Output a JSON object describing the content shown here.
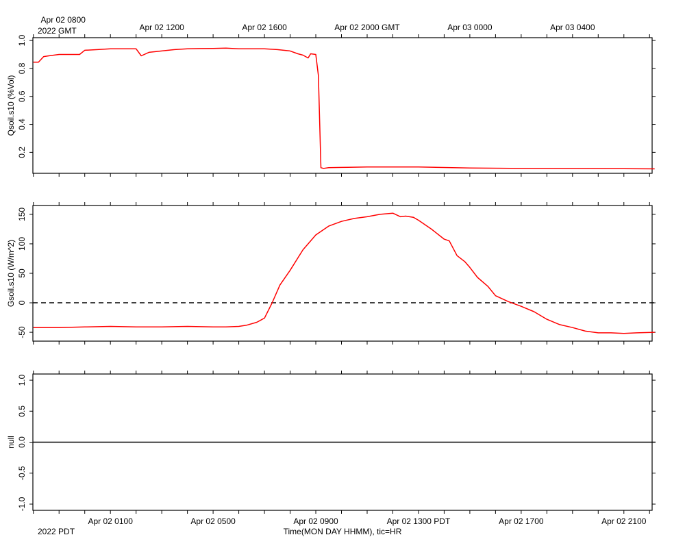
{
  "chart_data": [
    {
      "type": "line",
      "ylabel": "Qsoil.s10 (%Vol)",
      "ylim": [
        0.05,
        1.02
      ],
      "yticks": [
        0.2,
        0.4,
        0.6,
        0.8,
        1.0
      ],
      "ytick_labels": [
        "0.2",
        "0.4",
        "0.6",
        "0.8",
        "1.0"
      ],
      "top_axis_labels": [
        {
          "hour": 0,
          "text": "Apr 02 0800"
        },
        {
          "hour": 4,
          "text": "Apr 02 1200"
        },
        {
          "hour": 8,
          "text": "Apr 02 1600"
        },
        {
          "hour": 12,
          "text": "Apr 02 2000 GMT"
        },
        {
          "hour": 16,
          "text": "Apr 03 0000"
        },
        {
          "hour": 20,
          "text": "Apr 03 0400"
        }
      ],
      "top_axis_year": "2022 GMT",
      "reference_line": null,
      "series": [
        {
          "color": "#ff0000",
          "x": [
            -1,
            -0.8,
            -0.6,
            -0.4,
            -0.2,
            0,
            0.3,
            0.8,
            1,
            1.5,
            2,
            2.5,
            2.8,
            3,
            3.2,
            3.5,
            4,
            4.5,
            5,
            5.5,
            6,
            6.5,
            6.8,
            7,
            7.5,
            8,
            8.5,
            9,
            9.3,
            9.5,
            9.7,
            9.8,
            10,
            10.1,
            10.2,
            10.3,
            10.5,
            11,
            12,
            14,
            16,
            18,
            20,
            22,
            23.2
          ],
          "y": [
            0.845,
            0.845,
            0.885,
            0.89,
            0.895,
            0.9,
            0.9,
            0.9,
            0.93,
            0.935,
            0.94,
            0.94,
            0.94,
            0.94,
            0.89,
            0.915,
            0.925,
            0.935,
            0.94,
            0.942,
            0.943,
            0.945,
            0.942,
            0.94,
            0.94,
            0.94,
            0.935,
            0.925,
            0.905,
            0.895,
            0.875,
            0.905,
            0.9,
            0.75,
            0.09,
            0.085,
            0.09,
            0.092,
            0.095,
            0.095,
            0.088,
            0.085,
            0.084,
            0.083,
            0.082
          ]
        }
      ]
    },
    {
      "type": "line",
      "ylabel": "Gsoil.s10 (W/m^2)",
      "ylim": [
        -65,
        165
      ],
      "yticks": [
        -50,
        0,
        50,
        100,
        150
      ],
      "ytick_labels": [
        "-50",
        "0",
        "50",
        "100",
        "150"
      ],
      "reference_line": {
        "y": 0,
        "style": "dashed"
      },
      "series": [
        {
          "color": "#ff0000",
          "x": [
            -1,
            0,
            1,
            2,
            3,
            4,
            5,
            6,
            6.5,
            7,
            7.3,
            7.7,
            8,
            8.3,
            8.6,
            9,
            9.5,
            10,
            10.5,
            11,
            11.5,
            12,
            12.5,
            13,
            13.3,
            13.5,
            13.8,
            14,
            14.5,
            15,
            15.2,
            15.5,
            15.8,
            16,
            16.3,
            16.7,
            17,
            17.5,
            18,
            18.5,
            19,
            19.5,
            20,
            20.5,
            21,
            21.5,
            22,
            22.5,
            23.2
          ],
          "y": [
            -42,
            -42,
            -41,
            -40,
            -41,
            -41,
            -40,
            -41,
            -41,
            -40,
            -38,
            -33,
            -26,
            0,
            30,
            55,
            90,
            115,
            130,
            138,
            143,
            146,
            150,
            152,
            146,
            147,
            145,
            140,
            125,
            108,
            105,
            80,
            70,
            60,
            43,
            28,
            12,
            2,
            -6,
            -15,
            -28,
            -37,
            -42,
            -48,
            -51,
            -51,
            -52,
            -51,
            -50
          ]
        }
      ]
    },
    {
      "type": "line",
      "ylabel": "null",
      "ylim": [
        -1.1,
        1.1
      ],
      "yticks": [
        -1.0,
        -0.5,
        0.0,
        0.5,
        1.0
      ],
      "ytick_labels": [
        "-1.0",
        "-0.5",
        "0.0",
        "0.5",
        "1.0"
      ],
      "reference_line": {
        "y": 0,
        "style": "solid"
      },
      "series": [],
      "bottom_axis_labels": [
        {
          "hour": 2,
          "text": "Apr 02 0100"
        },
        {
          "hour": 6,
          "text": "Apr 02 0500"
        },
        {
          "hour": 10,
          "text": "Apr 02 0900"
        },
        {
          "hour": 14,
          "text": "Apr 02 1300 PDT"
        },
        {
          "hour": 18,
          "text": "Apr 02 1700"
        },
        {
          "hour": 22,
          "text": "Apr 02 2100"
        }
      ],
      "bottom_axis_year": "2022 PDT",
      "xlabel": "Time(MON DAY HHMM), tic=HR"
    }
  ],
  "time_axis": {
    "x_min_hour": -1.02,
    "x_max_hour": 23.1
  }
}
